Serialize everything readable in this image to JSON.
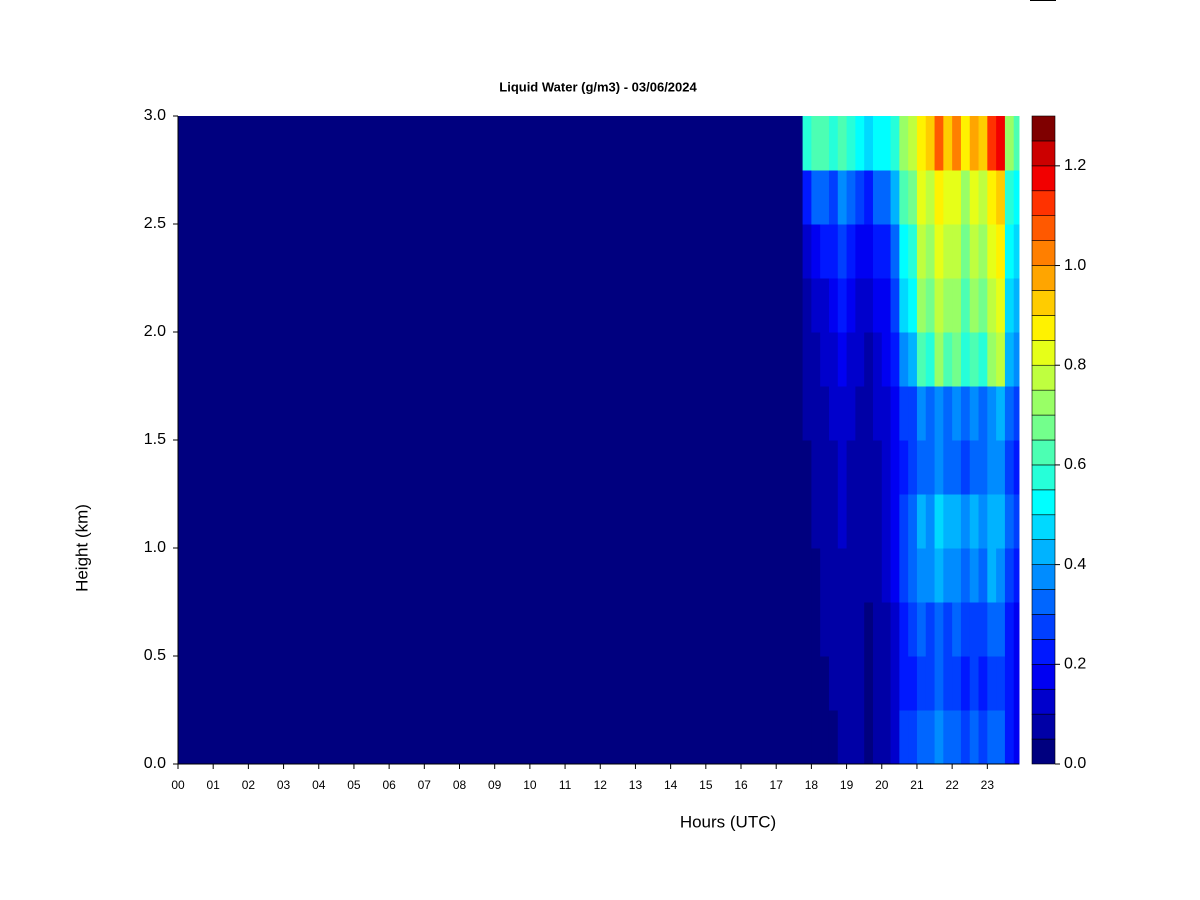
{
  "chart_data": {
    "type": "heatmap",
    "title": "Liquid Water (g/m3) - 03/06/2024",
    "x_label": "Hours (UTC)",
    "y_label": "Height (km)",
    "xlim": [
      0,
      23.9
    ],
    "ylim": [
      0,
      3
    ],
    "xticks": [
      {
        "value": 0,
        "label": "00"
      },
      {
        "value": 1,
        "label": "01"
      },
      {
        "value": 2,
        "label": "02"
      },
      {
        "value": 3,
        "label": "03"
      },
      {
        "value": 4,
        "label": "04"
      },
      {
        "value": 5,
        "label": "05"
      },
      {
        "value": 6,
        "label": "06"
      },
      {
        "value": 7,
        "label": "07"
      },
      {
        "value": 8,
        "label": "08"
      },
      {
        "value": 9,
        "label": "09"
      },
      {
        "value": 10,
        "label": "10"
      },
      {
        "value": 11,
        "label": "11"
      },
      {
        "value": 12,
        "label": "12"
      },
      {
        "value": 13,
        "label": "13"
      },
      {
        "value": 14,
        "label": "14"
      },
      {
        "value": 15,
        "label": "15"
      },
      {
        "value": 16,
        "label": "16"
      },
      {
        "value": 17,
        "label": "17"
      },
      {
        "value": 18,
        "label": "18"
      },
      {
        "value": 19,
        "label": "19"
      },
      {
        "value": 20,
        "label": "20"
      },
      {
        "value": 21,
        "label": "21"
      },
      {
        "value": 22,
        "label": "22"
      },
      {
        "value": 23,
        "label": "23"
      }
    ],
    "yticks": [
      {
        "value": 0,
        "label": "0.0"
      },
      {
        "value": 0.5,
        "label": "0.5"
      },
      {
        "value": 1,
        "label": "1.0"
      },
      {
        "value": 1.5,
        "label": "1.5"
      },
      {
        "value": 2,
        "label": "2.0"
      },
      {
        "value": 2.5,
        "label": "2.5"
      },
      {
        "value": 3,
        "label": "3.0"
      }
    ],
    "x_bins": [
      0,
      17.75,
      18,
      18.25,
      18.5,
      18.75,
      19,
      19.25,
      19.5,
      19.75,
      20,
      20.25,
      20.5,
      20.75,
      21,
      21.25,
      21.5,
      21.75,
      22,
      22.25,
      22.5,
      22.75,
      23,
      23.25,
      23.5,
      23.75,
      23.9
    ],
    "y_bins": [
      0,
      0.25,
      0.5,
      0.75,
      1,
      1.25,
      1.5,
      1.75,
      2,
      2.25,
      2.5,
      2.75,
      3
    ],
    "z": [
      [
        0,
        0,
        0,
        0,
        0,
        0.05,
        0.05,
        0.05,
        0,
        0.05,
        0.05,
        0.1,
        0.25,
        0.25,
        0.3,
        0.3,
        0.35,
        0.3,
        0.3,
        0.25,
        0.3,
        0.25,
        0.3,
        0.3,
        0.2,
        0.15
      ],
      [
        0,
        0,
        0,
        0,
        0.05,
        0.05,
        0.05,
        0.05,
        0,
        0.05,
        0.05,
        0.1,
        0.2,
        0.2,
        0.25,
        0.25,
        0.3,
        0.25,
        0.25,
        0.2,
        0.25,
        0.2,
        0.25,
        0.25,
        0.2,
        0.15
      ],
      [
        0,
        0,
        0,
        0.05,
        0.05,
        0.05,
        0.05,
        0.05,
        0,
        0.05,
        0.05,
        0.1,
        0.2,
        0.25,
        0.3,
        0.25,
        0.3,
        0.25,
        0.3,
        0.25,
        0.25,
        0.25,
        0.3,
        0.3,
        0.2,
        0.15
      ],
      [
        0,
        0,
        0,
        0.05,
        0.05,
        0.05,
        0.05,
        0.05,
        0.05,
        0.05,
        0.1,
        0.15,
        0.25,
        0.3,
        0.35,
        0.35,
        0.4,
        0.35,
        0.35,
        0.3,
        0.35,
        0.3,
        0.4,
        0.35,
        0.25,
        0.2
      ],
      [
        0,
        0,
        0.05,
        0.05,
        0.05,
        0.1,
        0.05,
        0.05,
        0.05,
        0.05,
        0.1,
        0.15,
        0.25,
        0.3,
        0.4,
        0.35,
        0.45,
        0.4,
        0.4,
        0.35,
        0.4,
        0.35,
        0.4,
        0.4,
        0.3,
        0.25
      ],
      [
        0,
        0,
        0.05,
        0.05,
        0.05,
        0.1,
        0.05,
        0.05,
        0.05,
        0.05,
        0.1,
        0.15,
        0.2,
        0.25,
        0.3,
        0.3,
        0.35,
        0.3,
        0.3,
        0.25,
        0.3,
        0.3,
        0.35,
        0.35,
        0.25,
        0.2
      ],
      [
        0,
        0.05,
        0.05,
        0.05,
        0.1,
        0.1,
        0.1,
        0.05,
        0.05,
        0.1,
        0.1,
        0.15,
        0.25,
        0.25,
        0.35,
        0.3,
        0.35,
        0.3,
        0.35,
        0.3,
        0.35,
        0.3,
        0.35,
        0.4,
        0.3,
        0.25
      ],
      [
        0,
        0.05,
        0.05,
        0.1,
        0.1,
        0.15,
        0.1,
        0.1,
        0.05,
        0.1,
        0.15,
        0.2,
        0.35,
        0.4,
        0.6,
        0.55,
        0.7,
        0.6,
        0.65,
        0.55,
        0.6,
        0.55,
        0.7,
        0.75,
        0.4,
        0.35
      ],
      [
        0,
        0.05,
        0.1,
        0.1,
        0.15,
        0.2,
        0.15,
        0.1,
        0.1,
        0.15,
        0.15,
        0.25,
        0.45,
        0.5,
        0.7,
        0.65,
        0.75,
        0.7,
        0.7,
        0.6,
        0.7,
        0.65,
        0.75,
        0.8,
        0.45,
        0.4
      ],
      [
        0,
        0.1,
        0.15,
        0.2,
        0.2,
        0.25,
        0.2,
        0.15,
        0.15,
        0.2,
        0.2,
        0.3,
        0.5,
        0.55,
        0.75,
        0.7,
        0.8,
        0.75,
        0.75,
        0.65,
        0.75,
        0.7,
        0.8,
        0.85,
        0.5,
        0.45
      ],
      [
        0,
        0.2,
        0.3,
        0.3,
        0.25,
        0.35,
        0.3,
        0.25,
        0.2,
        0.3,
        0.3,
        0.4,
        0.6,
        0.65,
        0.8,
        0.75,
        0.85,
        0.8,
        0.8,
        0.7,
        0.8,
        0.75,
        0.85,
        0.9,
        0.55,
        0.5
      ],
      [
        0,
        0.55,
        0.6,
        0.6,
        0.55,
        0.6,
        0.55,
        0.5,
        0.45,
        0.5,
        0.5,
        0.55,
        0.7,
        0.75,
        0.85,
        0.9,
        1.05,
        0.9,
        1.0,
        0.85,
        0.95,
        0.9,
        1.1,
        1.15,
        0.7,
        0.6
      ]
    ],
    "levels": [
      0,
      0.05,
      0.1,
      0.15,
      0.2,
      0.25,
      0.3,
      0.35,
      0.4,
      0.45,
      0.5,
      0.55,
      0.6,
      0.65,
      0.7,
      0.75,
      0.8,
      0.85,
      0.9,
      0.95,
      1,
      1.05,
      1.1,
      1.15,
      1.2,
      1.25,
      1.3
    ],
    "colors": [
      "#00007F",
      "#0000A6",
      "#0000CC",
      "#0000F2",
      "#0018FF",
      "#003FFF",
      "#0066FF",
      "#008CFF",
      "#00B3FF",
      "#00D9FF",
      "#00FFFF",
      "#26FFD9",
      "#4CFFB3",
      "#73FF8C",
      "#99FF66",
      "#BFFF3F",
      "#E6FF18",
      "#FFF200",
      "#FFCC00",
      "#FFA500",
      "#FF7F00",
      "#FF5900",
      "#FF3200",
      "#F20000",
      "#CC0000",
      "#7F0000"
    ],
    "colorbar_ticks": [
      {
        "value": 0,
        "label": "0.0"
      },
      {
        "value": 0.2,
        "label": "0.2"
      },
      {
        "value": 0.4,
        "label": "0.4"
      },
      {
        "value": 0.6,
        "label": "0.6"
      },
      {
        "value": 0.8,
        "label": "0.8"
      },
      {
        "value": 1,
        "label": "1.0"
      },
      {
        "value": 1.2,
        "label": "1.2"
      }
    ]
  }
}
